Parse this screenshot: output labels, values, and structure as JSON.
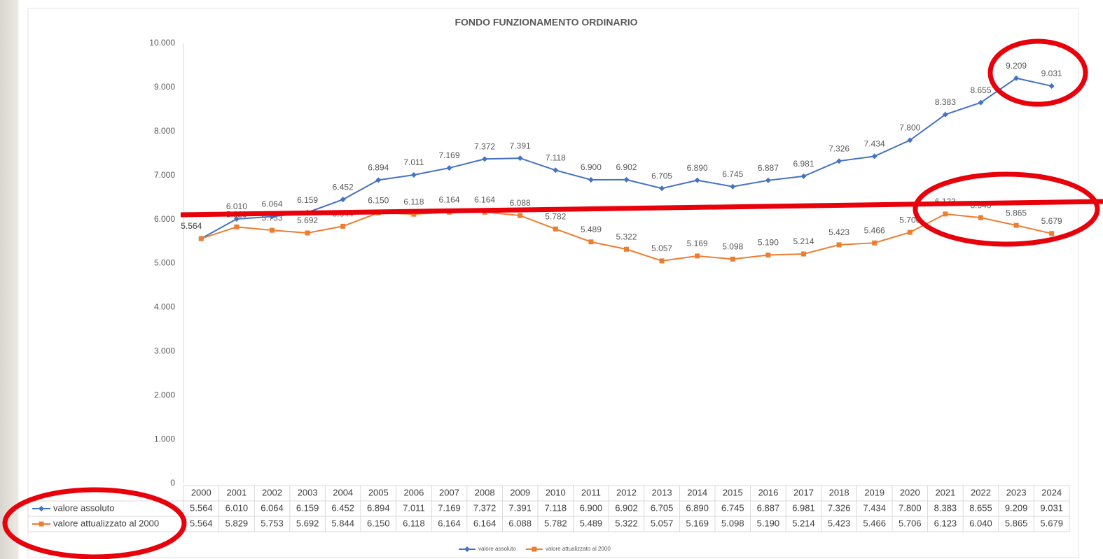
{
  "chart_data": {
    "type": "line",
    "title": "FONDO FUNZIONAMENTO ORDINARIO",
    "categories": [
      "2000",
      "2001",
      "2002",
      "2003",
      "2004",
      "2005",
      "2006",
      "2007",
      "2008",
      "2009",
      "2010",
      "2011",
      "2012",
      "2013",
      "2014",
      "2015",
      "2016",
      "2017",
      "2018",
      "2019",
      "2020",
      "2021",
      "2022",
      "2023",
      "2024"
    ],
    "series": [
      {
        "name": "valore assoluto",
        "color": "#4472c4",
        "marker": "diamond",
        "values": [
          5564,
          6010,
          6064,
          6159,
          6452,
          6894,
          7011,
          7169,
          7372,
          7391,
          7118,
          6900,
          6902,
          6705,
          6890,
          6745,
          6887,
          6981,
          7326,
          7434,
          7800,
          8383,
          8655,
          9209,
          9031
        ],
        "value_labels": [
          "5.564",
          "6.010",
          "6.064",
          "6.159",
          "6.452",
          "6.894",
          "7.011",
          "7.169",
          "7.372",
          "7.391",
          "7.118",
          "6.900",
          "6.902",
          "6.705",
          "6.890",
          "6.745",
          "6.887",
          "6.981",
          "7.326",
          "7.434",
          "7.800",
          "8.383",
          "8.655",
          "9.209",
          "9.031"
        ]
      },
      {
        "name": "valore attualizzato al 2000",
        "color": "#ed7d31",
        "marker": "square",
        "values": [
          5564,
          5829,
          5753,
          5692,
          5844,
          6150,
          6118,
          6164,
          6164,
          6088,
          5782,
          5489,
          5322,
          5057,
          5169,
          5098,
          5190,
          5214,
          5423,
          5466,
          5706,
          6123,
          6040,
          5865,
          5679
        ],
        "value_labels": [
          "5.564",
          "5.829",
          "5.753",
          "5.692",
          "5.844",
          "6.150",
          "6.118",
          "6.164",
          "6.164",
          "6.088",
          "5.782",
          "5.489",
          "5.322",
          "5.057",
          "5.169",
          "5.098",
          "5.190",
          "5.214",
          "5.423",
          "5.466",
          "5.706",
          "6.123",
          "6.040",
          "5.865",
          "5.679"
        ]
      }
    ],
    "ylim": [
      0,
      10000
    ],
    "yticks": [
      0,
      {
        "value": 1000,
        "label": "1.000"
      },
      {
        "value": 2000,
        "label": "2.000"
      },
      {
        "value": 3000,
        "label": "3.000"
      },
      {
        "value": 4000,
        "label": "4.000"
      },
      {
        "value": 5000,
        "label": "5.000"
      },
      {
        "value": 6000,
        "label": "6.000"
      },
      {
        "value": 7000,
        "label": "7.000"
      },
      {
        "value": 8000,
        "label": "8.000"
      },
      {
        "value": 9000,
        "label": "9.000"
      },
      {
        "value": 10000,
        "label": "10.000"
      }
    ],
    "grid": false,
    "data_table": true,
    "legend": "bottom"
  }
}
